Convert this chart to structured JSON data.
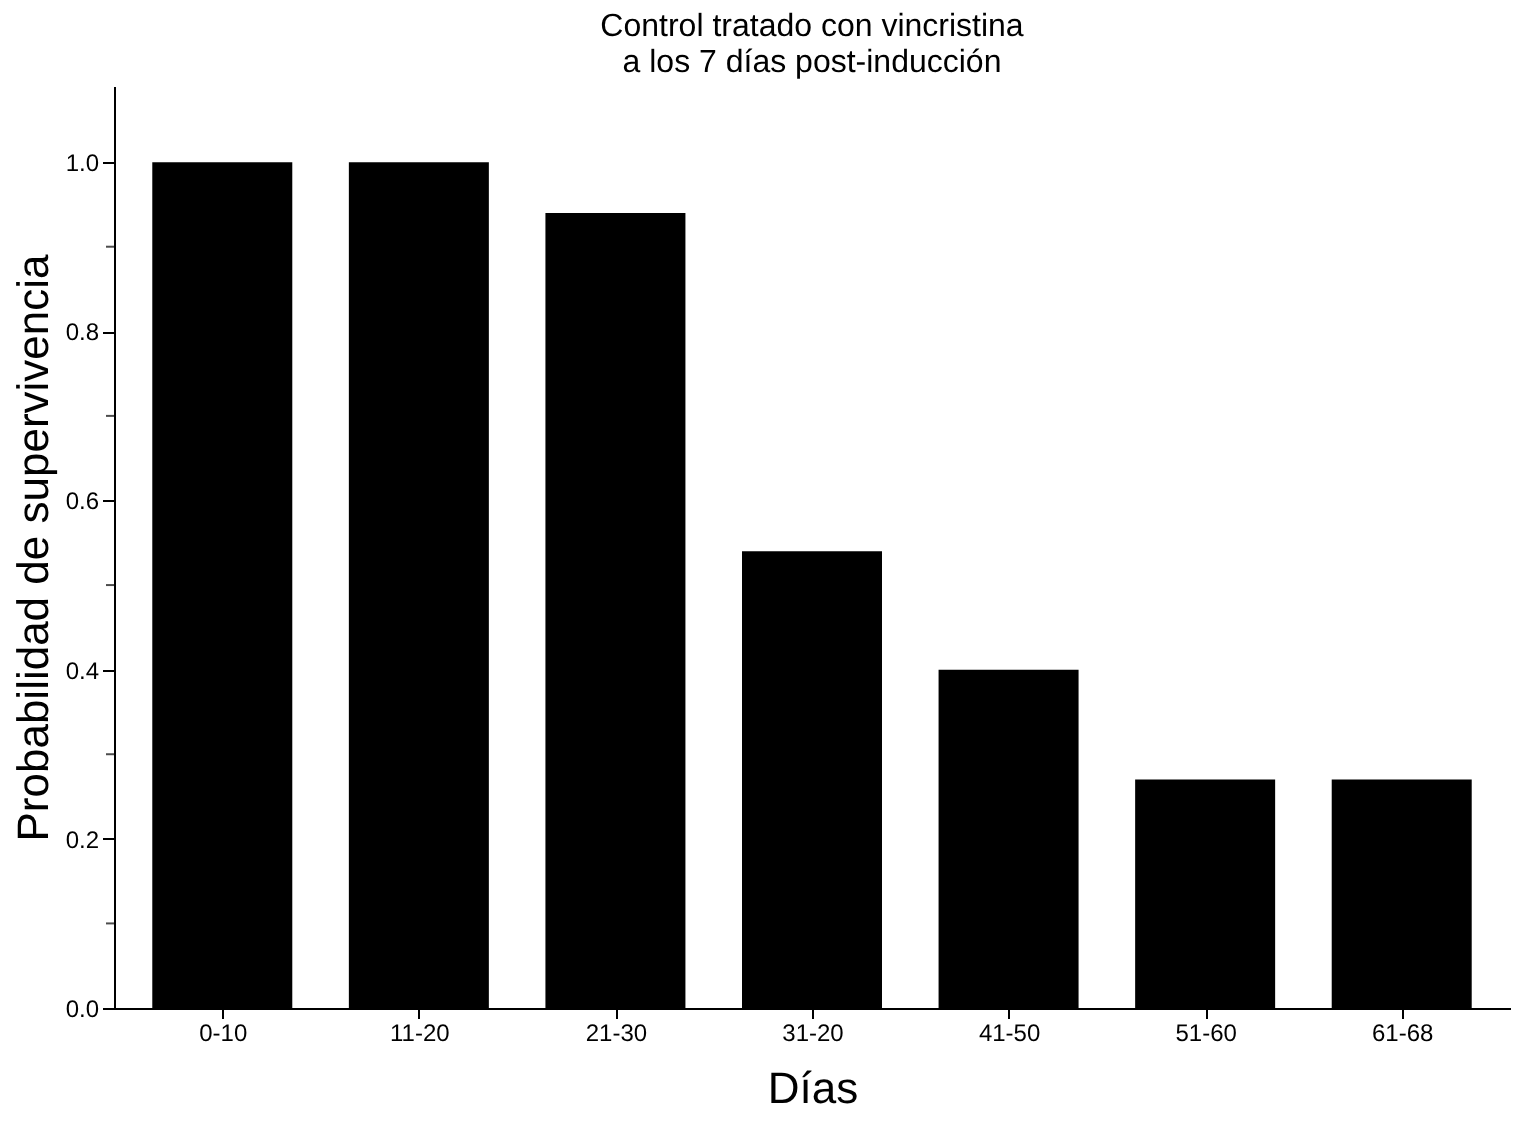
{
  "chart_data": {
    "type": "bar",
    "title": [
      "Control tratado con vincristina",
      "a los 7 días post-inducción"
    ],
    "xlabel": "Días",
    "ylabel": "Probabilidad de supervivencia",
    "categories": [
      "0-10",
      "11-20",
      "21-30",
      "31-20",
      "41-50",
      "51-60",
      "61-68"
    ],
    "values": [
      1.0,
      1.0,
      0.94,
      0.54,
      0.4,
      0.27,
      0.27
    ],
    "color": "#000000",
    "ylim": [
      0,
      1.09
    ],
    "yticks": [
      {
        "value": 0,
        "label": "0.0"
      },
      0.2,
      0.4,
      0.6,
      0.8,
      {
        "value": 1,
        "label": "1.0"
      }
    ],
    "grid": false
  }
}
